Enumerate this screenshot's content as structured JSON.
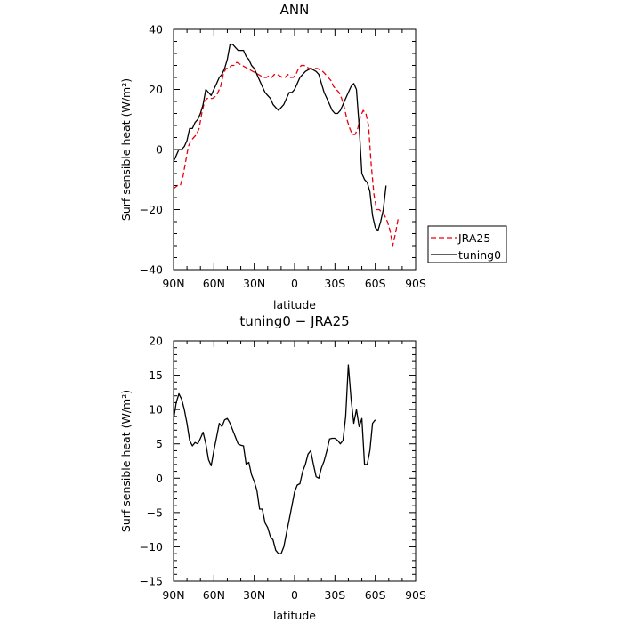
{
  "chart_data": [
    {
      "type": "line",
      "title": "ANN",
      "xlabel": "latitude",
      "ylabel": "Surf sensible heat (W/m²)",
      "xlim": [
        90,
        -90
      ],
      "ylim": [
        -40,
        40
      ],
      "x_ticks": [
        90,
        60,
        30,
        0,
        -30,
        -60,
        -90
      ],
      "x_tick_labels": [
        "90N",
        "60N",
        "30N",
        "0",
        "30S",
        "60S",
        "90S"
      ],
      "y_ticks": [
        -40,
        -20,
        0,
        20,
        40
      ],
      "y_tick_labels": [
        "−40",
        "−20",
        "0",
        "20",
        "40"
      ],
      "legend_position": "outside-right",
      "series": [
        {
          "name": "JRA25",
          "color": "#e8000b",
          "dash": "dashed",
          "points": [
            [
              90,
              -13
            ],
            [
              87,
              -12
            ],
            [
              85,
              -12
            ],
            [
              83,
              -9
            ],
            [
              81,
              -4
            ],
            [
              79,
              1
            ],
            [
              77,
              3
            ],
            [
              75,
              4
            ],
            [
              73,
              5
            ],
            [
              71,
              7
            ],
            [
              69,
              12
            ],
            [
              67,
              16
            ],
            [
              65,
              17
            ],
            [
              63,
              17
            ],
            [
              61,
              17
            ],
            [
              58,
              18
            ],
            [
              55,
              21
            ],
            [
              53,
              25
            ],
            [
              51,
              27
            ],
            [
              49,
              27
            ],
            [
              47,
              28
            ],
            [
              45,
              28
            ],
            [
              43,
              29
            ],
            [
              41,
              28.5
            ],
            [
              39,
              28
            ],
            [
              37,
              27.5
            ],
            [
              35,
              27
            ],
            [
              33,
              26.5
            ],
            [
              31,
              26
            ],
            [
              29,
              25.5
            ],
            [
              27,
              25
            ],
            [
              25,
              24.5
            ],
            [
              23,
              24
            ],
            [
              21,
              24
            ],
            [
              19,
              24.5
            ],
            [
              17,
              24
            ],
            [
              15,
              25
            ],
            [
              13,
              25
            ],
            [
              11,
              24.5
            ],
            [
              9,
              24
            ],
            [
              7,
              24
            ],
            [
              5,
              25
            ],
            [
              3,
              24
            ],
            [
              1,
              24
            ],
            [
              -1,
              25
            ],
            [
              -3,
              27
            ],
            [
              -5,
              28
            ],
            [
              -7,
              28
            ],
            [
              -9,
              27.5
            ],
            [
              -11,
              27
            ],
            [
              -13,
              27
            ],
            [
              -15,
              27
            ],
            [
              -17,
              27
            ],
            [
              -19,
              26.5
            ],
            [
              -21,
              26
            ],
            [
              -23,
              25
            ],
            [
              -25,
              24
            ],
            [
              -27,
              23
            ],
            [
              -29,
              21
            ],
            [
              -31,
              20
            ],
            [
              -33,
              19
            ],
            [
              -35,
              17
            ],
            [
              -37,
              14
            ],
            [
              -39,
              10
            ],
            [
              -41,
              7
            ],
            [
              -43,
              5
            ],
            [
              -45,
              5
            ],
            [
              -47,
              7
            ],
            [
              -49,
              11
            ],
            [
              -51,
              13
            ],
            [
              -53,
              12
            ],
            [
              -55,
              8
            ],
            [
              -57,
              -5
            ],
            [
              -59,
              -15
            ],
            [
              -61,
              -20
            ],
            [
              -63,
              -20
            ],
            [
              -65,
              -21
            ],
            [
              -67,
              -22
            ],
            [
              -69,
              -24
            ],
            [
              -71,
              -27
            ],
            [
              -73,
              -32
            ],
            [
              -75,
              -28
            ],
            [
              -77,
              -23
            ]
          ]
        },
        {
          "name": "tuning0",
          "color": "#000000",
          "dash": "solid",
          "points": [
            [
              90,
              -4
            ],
            [
              88,
              -2
            ],
            [
              86,
              0
            ],
            [
              84,
              0
            ],
            [
              82,
              1
            ],
            [
              80,
              3
            ],
            [
              78,
              7
            ],
            [
              76,
              7
            ],
            [
              74,
              9
            ],
            [
              72,
              10
            ],
            [
              70,
              12
            ],
            [
              68,
              15
            ],
            [
              66,
              20
            ],
            [
              64,
              19
            ],
            [
              62,
              18
            ],
            [
              60,
              20
            ],
            [
              58,
              22
            ],
            [
              56,
              24
            ],
            [
              54,
              25
            ],
            [
              52,
              27
            ],
            [
              50,
              30
            ],
            [
              48,
              35
            ],
            [
              46,
              35
            ],
            [
              44,
              34
            ],
            [
              42,
              33
            ],
            [
              40,
              33
            ],
            [
              38,
              33
            ],
            [
              36,
              31
            ],
            [
              34,
              30
            ],
            [
              32,
              28
            ],
            [
              30,
              27
            ],
            [
              28,
              25
            ],
            [
              26,
              23
            ],
            [
              24,
              21
            ],
            [
              22,
              19
            ],
            [
              20,
              18
            ],
            [
              18,
              17
            ],
            [
              16,
              15
            ],
            [
              14,
              14
            ],
            [
              12,
              13
            ],
            [
              10,
              14
            ],
            [
              8,
              15
            ],
            [
              6,
              17
            ],
            [
              4,
              19
            ],
            [
              2,
              19
            ],
            [
              0,
              20
            ],
            [
              -2,
              22
            ],
            [
              -4,
              24
            ],
            [
              -6,
              25
            ],
            [
              -8,
              26
            ],
            [
              -10,
              26.5
            ],
            [
              -12,
              27
            ],
            [
              -14,
              26.5
            ],
            [
              -16,
              26
            ],
            [
              -18,
              25
            ],
            [
              -20,
              22
            ],
            [
              -22,
              19
            ],
            [
              -24,
              17
            ],
            [
              -26,
              15
            ],
            [
              -28,
              13
            ],
            [
              -30,
              12
            ],
            [
              -32,
              12
            ],
            [
              -34,
              13
            ],
            [
              -36,
              15
            ],
            [
              -38,
              17
            ],
            [
              -40,
              19
            ],
            [
              -42,
              21
            ],
            [
              -44,
              22
            ],
            [
              -46,
              20
            ],
            [
              -48,
              8
            ],
            [
              -50,
              -8
            ],
            [
              -52,
              -10
            ],
            [
              -54,
              -11
            ],
            [
              -56,
              -14
            ],
            [
              -58,
              -22
            ],
            [
              -60,
              -26
            ],
            [
              -62,
              -27
            ],
            [
              -64,
              -24
            ],
            [
              -66,
              -20
            ],
            [
              -68,
              -12
            ]
          ]
        }
      ]
    },
    {
      "type": "line",
      "title": "tuning0 − JRA25",
      "xlabel": "latitude",
      "ylabel": "Surf sensible heat (W/m²)",
      "xlim": [
        90,
        -90
      ],
      "ylim": [
        -15,
        20
      ],
      "x_ticks": [
        90,
        60,
        30,
        0,
        -30,
        -60,
        -90
      ],
      "x_tick_labels": [
        "90N",
        "60N",
        "30N",
        "0",
        "30S",
        "60S",
        "90S"
      ],
      "y_ticks": [
        -15,
        -10,
        -5,
        0,
        5,
        10,
        15,
        20
      ],
      "y_tick_labels": [
        "−15",
        "−10",
        "−5",
        "0",
        "5",
        "10",
        "15",
        "20"
      ],
      "series": [
        {
          "color": "#000000",
          "dash": "solid",
          "points": [
            [
              90,
              8.5
            ],
            [
              88,
              11
            ],
            [
              86,
              12.3
            ],
            [
              84,
              11.5
            ],
            [
              82,
              10
            ],
            [
              80,
              8
            ],
            [
              78,
              5.5
            ],
            [
              76,
              4.7
            ],
            [
              74,
              5.2
            ],
            [
              72,
              5
            ],
            [
              70,
              5.8
            ],
            [
              68,
              6.7
            ],
            [
              66,
              5
            ],
            [
              64,
              2.7
            ],
            [
              62,
              1.8
            ],
            [
              60,
              4
            ],
            [
              58,
              6
            ],
            [
              56,
              8
            ],
            [
              54,
              7.5
            ],
            [
              52,
              8.5
            ],
            [
              50,
              8.7
            ],
            [
              48,
              8
            ],
            [
              46,
              7
            ],
            [
              44,
              6
            ],
            [
              42,
              5
            ],
            [
              40,
              4.8
            ],
            [
              38,
              4.7
            ],
            [
              36,
              2
            ],
            [
              34,
              2.3
            ],
            [
              32,
              0.5
            ],
            [
              30,
              -0.5
            ],
            [
              28,
              -1.8
            ],
            [
              26,
              -4.5
            ],
            [
              24,
              -4.5
            ],
            [
              22,
              -6.5
            ],
            [
              20,
              -7.2
            ],
            [
              18,
              -8.5
            ],
            [
              16,
              -9
            ],
            [
              14,
              -10.5
            ],
            [
              12,
              -11
            ],
            [
              10,
              -11
            ],
            [
              8,
              -10
            ],
            [
              6,
              -8
            ],
            [
              4,
              -6
            ],
            [
              2,
              -4
            ],
            [
              0,
              -2
            ],
            [
              -2,
              -1
            ],
            [
              -4,
              -0.8
            ],
            [
              -6,
              1
            ],
            [
              -8,
              2
            ],
            [
              -10,
              3.5
            ],
            [
              -12,
              4
            ],
            [
              -14,
              2
            ],
            [
              -16,
              0.2
            ],
            [
              -18,
              0
            ],
            [
              -20,
              1.5
            ],
            [
              -22,
              2.5
            ],
            [
              -24,
              4
            ],
            [
              -26,
              5.7
            ],
            [
              -28,
              5.8
            ],
            [
              -30,
              5.8
            ],
            [
              -32,
              5.5
            ],
            [
              -34,
              5
            ],
            [
              -36,
              5.5
            ],
            [
              -38,
              9
            ],
            [
              -40,
              16.5
            ],
            [
              -42,
              11.5
            ],
            [
              -44,
              8
            ],
            [
              -46,
              10
            ],
            [
              -48,
              7.5
            ],
            [
              -50,
              8.7
            ],
            [
              -52,
              2
            ],
            [
              -54,
              2
            ],
            [
              -56,
              4
            ],
            [
              -58,
              8
            ],
            [
              -60,
              8.5
            ]
          ]
        }
      ]
    }
  ]
}
